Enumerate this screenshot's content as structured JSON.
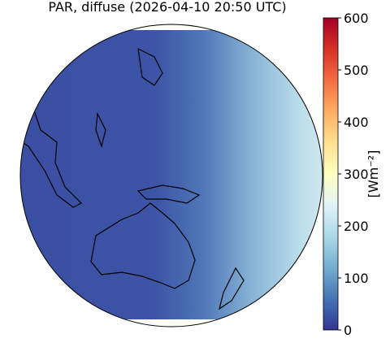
{
  "title": "PAR, diffuse (2026-04-10 20:50 UTC)",
  "colorbar": {
    "label": "[Wm⁻²]",
    "lim": [
      0,
      600
    ],
    "ticks": [
      0,
      100,
      200,
      300,
      400,
      500,
      600
    ],
    "colors": [
      "#313695",
      "#4575b4",
      "#74add1",
      "#abd9e9",
      "#e0f3f8",
      "#ffffbf",
      "#fee090",
      "#fdae61",
      "#f46d43",
      "#d73027",
      "#a50026"
    ]
  }
}
